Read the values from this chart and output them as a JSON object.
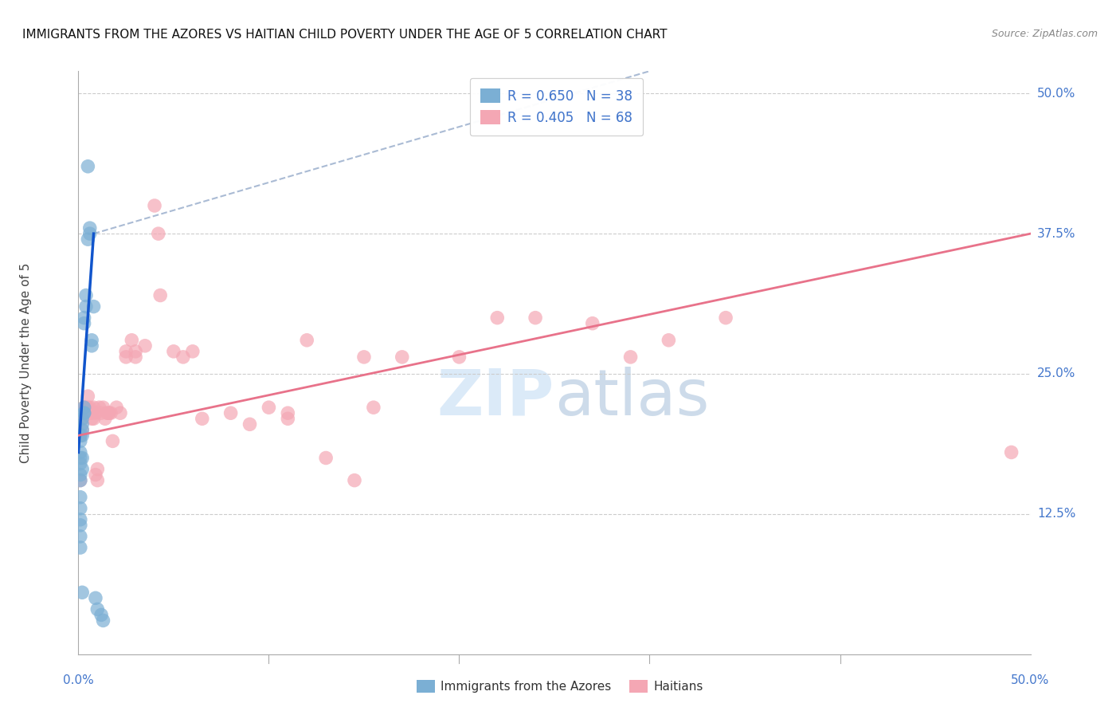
{
  "title": "IMMIGRANTS FROM THE AZORES VS HAITIAN CHILD POVERTY UNDER THE AGE OF 5 CORRELATION CHART",
  "source": "Source: ZipAtlas.com",
  "ylabel": "Child Poverty Under the Age of 5",
  "ytick_labels": [
    "12.5%",
    "25.0%",
    "37.5%",
    "50.0%"
  ],
  "ytick_values": [
    0.125,
    0.25,
    0.375,
    0.5
  ],
  "xtick_labels": [
    "0.0%",
    "50.0%"
  ],
  "xtick_values": [
    0.0,
    0.5
  ],
  "xmin": 0.0,
  "xmax": 0.5,
  "ymin": 0.0,
  "ymax": 0.52,
  "legend_r1": "R = 0.650",
  "legend_n1": "N = 38",
  "legend_r2": "R = 0.405",
  "legend_n2": "N = 68",
  "color_blue": "#7BAFD4",
  "color_pink": "#F4A7B4",
  "color_blue_line": "#1155CC",
  "color_pink_line": "#E8728A",
  "color_blue_text": "#4477CC",
  "watermark_color": "#D8E8F8",
  "blue_points": [
    [
      0.001,
      0.195
    ],
    [
      0.001,
      0.175
    ],
    [
      0.001,
      0.18
    ],
    [
      0.001,
      0.19
    ],
    [
      0.001,
      0.17
    ],
    [
      0.001,
      0.16
    ],
    [
      0.001,
      0.155
    ],
    [
      0.001,
      0.14
    ],
    [
      0.001,
      0.13
    ],
    [
      0.001,
      0.12
    ],
    [
      0.001,
      0.115
    ],
    [
      0.001,
      0.105
    ],
    [
      0.001,
      0.095
    ],
    [
      0.002,
      0.21
    ],
    [
      0.002,
      0.205
    ],
    [
      0.002,
      0.2
    ],
    [
      0.002,
      0.195
    ],
    [
      0.002,
      0.175
    ],
    [
      0.002,
      0.165
    ],
    [
      0.002,
      0.055
    ],
    [
      0.003,
      0.22
    ],
    [
      0.003,
      0.215
    ],
    [
      0.003,
      0.215
    ],
    [
      0.003,
      0.3
    ],
    [
      0.003,
      0.295
    ],
    [
      0.004,
      0.32
    ],
    [
      0.004,
      0.31
    ],
    [
      0.005,
      0.435
    ],
    [
      0.005,
      0.37
    ],
    [
      0.006,
      0.38
    ],
    [
      0.006,
      0.375
    ],
    [
      0.007,
      0.28
    ],
    [
      0.007,
      0.275
    ],
    [
      0.008,
      0.31
    ],
    [
      0.009,
      0.05
    ],
    [
      0.01,
      0.04
    ],
    [
      0.012,
      0.035
    ],
    [
      0.013,
      0.03
    ]
  ],
  "pink_points": [
    [
      0.001,
      0.195
    ],
    [
      0.001,
      0.155
    ],
    [
      0.002,
      0.2
    ],
    [
      0.002,
      0.21
    ],
    [
      0.002,
      0.215
    ],
    [
      0.003,
      0.215
    ],
    [
      0.003,
      0.215
    ],
    [
      0.003,
      0.22
    ],
    [
      0.004,
      0.215
    ],
    [
      0.004,
      0.22
    ],
    [
      0.004,
      0.215
    ],
    [
      0.005,
      0.215
    ],
    [
      0.005,
      0.22
    ],
    [
      0.005,
      0.23
    ],
    [
      0.006,
      0.215
    ],
    [
      0.006,
      0.22
    ],
    [
      0.006,
      0.215
    ],
    [
      0.007,
      0.21
    ],
    [
      0.007,
      0.215
    ],
    [
      0.008,
      0.21
    ],
    [
      0.008,
      0.22
    ],
    [
      0.009,
      0.215
    ],
    [
      0.009,
      0.16
    ],
    [
      0.01,
      0.155
    ],
    [
      0.01,
      0.165
    ],
    [
      0.011,
      0.22
    ],
    [
      0.012,
      0.215
    ],
    [
      0.013,
      0.22
    ],
    [
      0.014,
      0.21
    ],
    [
      0.015,
      0.215
    ],
    [
      0.016,
      0.215
    ],
    [
      0.016,
      0.215
    ],
    [
      0.017,
      0.215
    ],
    [
      0.018,
      0.19
    ],
    [
      0.02,
      0.22
    ],
    [
      0.022,
      0.215
    ],
    [
      0.025,
      0.265
    ],
    [
      0.025,
      0.27
    ],
    [
      0.028,
      0.28
    ],
    [
      0.03,
      0.265
    ],
    [
      0.03,
      0.27
    ],
    [
      0.035,
      0.275
    ],
    [
      0.04,
      0.4
    ],
    [
      0.042,
      0.375
    ],
    [
      0.043,
      0.32
    ],
    [
      0.05,
      0.27
    ],
    [
      0.055,
      0.265
    ],
    [
      0.06,
      0.27
    ],
    [
      0.065,
      0.21
    ],
    [
      0.08,
      0.215
    ],
    [
      0.09,
      0.205
    ],
    [
      0.1,
      0.22
    ],
    [
      0.11,
      0.21
    ],
    [
      0.11,
      0.215
    ],
    [
      0.12,
      0.28
    ],
    [
      0.13,
      0.175
    ],
    [
      0.145,
      0.155
    ],
    [
      0.15,
      0.265
    ],
    [
      0.155,
      0.22
    ],
    [
      0.17,
      0.265
    ],
    [
      0.2,
      0.265
    ],
    [
      0.22,
      0.3
    ],
    [
      0.24,
      0.3
    ],
    [
      0.27,
      0.295
    ],
    [
      0.29,
      0.265
    ],
    [
      0.31,
      0.28
    ],
    [
      0.34,
      0.3
    ],
    [
      0.49,
      0.18
    ]
  ],
  "blue_line": {
    "x0": 0.0,
    "y0": 0.18,
    "x1": 0.008,
    "y1": 0.375
  },
  "blue_line_dash": {
    "x0": 0.008,
    "y0": 0.375,
    "x1": 0.3,
    "y1": 0.52
  },
  "pink_line": {
    "x0": 0.0,
    "y0": 0.195,
    "x1": 0.5,
    "y1": 0.375
  }
}
